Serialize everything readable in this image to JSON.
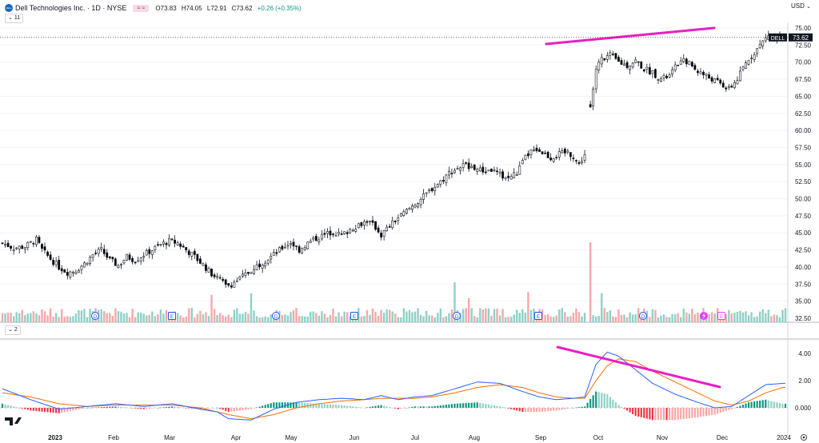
{
  "header": {
    "symbol_title": "Dell Technologies Inc. · 1D · NYSE",
    "logo_text": "DELL",
    "badge_text": "≈ ≈",
    "open": "O73.83",
    "high": "H74.05",
    "low": "L72.91",
    "close": "C73.62",
    "change": "+0.26 (+0.35%)",
    "indicator_count_price": "11",
    "indicator_count_macd": "2",
    "currency": "USD"
  },
  "price_label": {
    "symbol": "DELL",
    "value": "73.62"
  },
  "colors": {
    "up": "#26a69a",
    "down": "#000000",
    "trend": "#e91ec4",
    "macd_line": "#2962ff",
    "signal_line": "#ff6d00",
    "hist_up": "#089981",
    "hist_down": "#f23645"
  },
  "chart_data": [
    {
      "type": "candlestick",
      "title": "Dell Technologies Inc. · 1D · NYSE",
      "x_ticks": [
        "2023",
        "Feb",
        "Mar",
        "Apr",
        "May",
        "Jun",
        "Jul",
        "Aug",
        "Sep",
        "Oct",
        "Nov",
        "Dec",
        "2024"
      ],
      "y_ticks": [
        "75.00",
        "72.50",
        "70.00",
        "67.50",
        "65.00",
        "62.50",
        "60.00",
        "57.50",
        "55.00",
        "52.50",
        "50.00",
        "47.50",
        "45.00",
        "42.50",
        "40.00",
        "37.50",
        "35.00",
        "32.50"
      ],
      "ylim": [
        32.5,
        77
      ],
      "current_price": 73.62,
      "close_path": [
        [
          0,
          43.5
        ],
        [
          4,
          42.8
        ],
        [
          8,
          43.0
        ],
        [
          12,
          44.0
        ],
        [
          14,
          42.5
        ],
        [
          17,
          41.2
        ],
        [
          20,
          40.0
        ],
        [
          23,
          39.2
        ],
        [
          26,
          39.5
        ],
        [
          29,
          40.5
        ],
        [
          32,
          41.8
        ],
        [
          35,
          42.5
        ],
        [
          38,
          41.0
        ],
        [
          41,
          40.2
        ],
        [
          44,
          41.5
        ],
        [
          47,
          41.0
        ],
        [
          50,
          41.8
        ],
        [
          53,
          42.5
        ],
        [
          56,
          43.3
        ],
        [
          59,
          43.8
        ],
        [
          62,
          43.5
        ],
        [
          65,
          42.5
        ],
        [
          68,
          41.5
        ],
        [
          71,
          40.3
        ],
        [
          74,
          39.0
        ],
        [
          77,
          38.2
        ],
        [
          79,
          37.2
        ],
        [
          81,
          37.5
        ],
        [
          84,
          38.3
        ],
        [
          87,
          39.2
        ],
        [
          90,
          40.2
        ],
        [
          93,
          41.0
        ],
        [
          96,
          41.8
        ],
        [
          99,
          42.8
        ],
        [
          102,
          43.6
        ],
        [
          105,
          42.5
        ],
        [
          108,
          43.5
        ],
        [
          111,
          44.2
        ],
        [
          114,
          44.7
        ],
        [
          117,
          45.2
        ],
        [
          120,
          44.6
        ],
        [
          123,
          45.5
        ],
        [
          126,
          46.2
        ],
        [
          129,
          46.8
        ],
        [
          132,
          45.8
        ],
        [
          134,
          44.7
        ],
        [
          137,
          46.0
        ],
        [
          140,
          47.2
        ],
        [
          143,
          48.2
        ],
        [
          146,
          49.3
        ],
        [
          149,
          50.3
        ],
        [
          152,
          51.5
        ],
        [
          155,
          52.5
        ],
        [
          158,
          53.8
        ],
        [
          161,
          54.5
        ],
        [
          164,
          55.0
        ],
        [
          167,
          54.5
        ],
        [
          170,
          54.0
        ],
        [
          173,
          54.2
        ],
        [
          176,
          53.5
        ],
        [
          179,
          53.0
        ],
        [
          182,
          53.8
        ],
        [
          185,
          56.0
        ],
        [
          188,
          57.5
        ],
        [
          191,
          56.8
        ],
        [
          194,
          56.0
        ],
        [
          197,
          56.5
        ],
        [
          200,
          56.8
        ],
        [
          202,
          56.2
        ],
        [
          204,
          55.0
        ],
        [
          206,
          56.5
        ],
        [
          208,
          63.2
        ],
        [
          210,
          69.0
        ],
        [
          212,
          70.5
        ],
        [
          215,
          71.0
        ],
        [
          218,
          70.0
        ],
        [
          221,
          69.5
        ],
        [
          224,
          70.2
        ],
        [
          227,
          69.0
        ],
        [
          230,
          68.5
        ],
        [
          233,
          67.5
        ],
        [
          236,
          68.0
        ],
        [
          239,
          69.8
        ],
        [
          242,
          70.2
        ],
        [
          245,
          69.0
        ],
        [
          248,
          68.2
        ],
        [
          251,
          67.5
        ],
        [
          254,
          66.8
        ],
        [
          257,
          66.0
        ],
        [
          260,
          67.5
        ],
        [
          263,
          69.8
        ],
        [
          266,
          71.5
        ],
        [
          269,
          73.0
        ],
        [
          271,
          74.0
        ],
        [
          273,
          73.2
        ],
        [
          275,
          73.6
        ],
        [
          277,
          73.62
        ]
      ],
      "earnings_markers": [
        "E",
        "E",
        "E",
        "E",
        "E"
      ],
      "dividend_markers": [
        "D",
        "D",
        "D",
        "D",
        "D",
        "D"
      ],
      "trendline": "rising resistance from Sep to Nov"
    },
    {
      "type": "macd",
      "y_ticks": [
        "4.00",
        "2.00",
        "0.000"
      ],
      "ylim": [
        -1.2,
        4.5
      ],
      "macd_path": [
        [
          0,
          1.4
        ],
        [
          10,
          0.6
        ],
        [
          20,
          -0.1
        ],
        [
          30,
          0.1
        ],
        [
          40,
          0.3
        ],
        [
          50,
          0.1
        ],
        [
          60,
          0.3
        ],
        [
          70,
          -0.1
        ],
        [
          76,
          -0.3
        ],
        [
          80,
          -0.8
        ],
        [
          88,
          -0.9
        ],
        [
          96,
          -0.1
        ],
        [
          104,
          0.4
        ],
        [
          112,
          0.6
        ],
        [
          120,
          0.7
        ],
        [
          128,
          0.6
        ],
        [
          134,
          0.9
        ],
        [
          140,
          0.6
        ],
        [
          146,
          0.8
        ],
        [
          152,
          0.9
        ],
        [
          160,
          1.4
        ],
        [
          168,
          1.9
        ],
        [
          176,
          1.8
        ],
        [
          184,
          1.2
        ],
        [
          190,
          0.8
        ],
        [
          196,
          0.6
        ],
        [
          202,
          0.7
        ],
        [
          206,
          0.8
        ],
        [
          210,
          3.2
        ],
        [
          214,
          4.1
        ],
        [
          218,
          3.8
        ],
        [
          224,
          2.8
        ],
        [
          230,
          1.8
        ],
        [
          238,
          1.0
        ],
        [
          246,
          0.4
        ],
        [
          252,
          0.0
        ],
        [
          258,
          0.1
        ],
        [
          264,
          0.9
        ],
        [
          270,
          1.7
        ],
        [
          276,
          1.8
        ]
      ],
      "signal_path": [
        [
          0,
          1.1
        ],
        [
          10,
          0.8
        ],
        [
          20,
          0.3
        ],
        [
          30,
          0.1
        ],
        [
          40,
          0.2
        ],
        [
          50,
          0.2
        ],
        [
          60,
          0.2
        ],
        [
          70,
          0.0
        ],
        [
          80,
          -0.5
        ],
        [
          88,
          -0.8
        ],
        [
          96,
          -0.5
        ],
        [
          104,
          0.0
        ],
        [
          112,
          0.3
        ],
        [
          120,
          0.5
        ],
        [
          128,
          0.6
        ],
        [
          134,
          0.7
        ],
        [
          140,
          0.7
        ],
        [
          146,
          0.7
        ],
        [
          152,
          0.8
        ],
        [
          160,
          1.1
        ],
        [
          168,
          1.5
        ],
        [
          176,
          1.7
        ],
        [
          184,
          1.5
        ],
        [
          190,
          1.1
        ],
        [
          196,
          0.8
        ],
        [
          202,
          0.7
        ],
        [
          206,
          0.7
        ],
        [
          210,
          2.0
        ],
        [
          214,
          3.1
        ],
        [
          218,
          3.6
        ],
        [
          224,
          3.4
        ],
        [
          230,
          2.7
        ],
        [
          238,
          1.9
        ],
        [
          246,
          1.1
        ],
        [
          252,
          0.5
        ],
        [
          258,
          0.2
        ],
        [
          264,
          0.5
        ],
        [
          270,
          1.1
        ],
        [
          276,
          1.5
        ]
      ],
      "trendline": "falling divergence from Sep to Nov"
    }
  ]
}
